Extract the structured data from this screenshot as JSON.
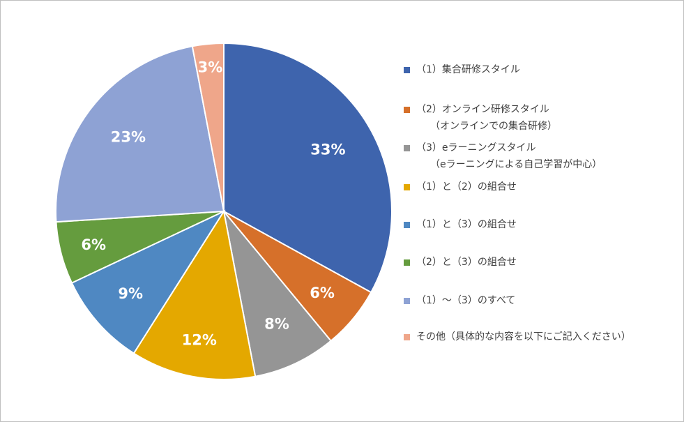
{
  "chart_data": {
    "type": "pie",
    "title": "",
    "legend_position": "right",
    "categories": [
      "（1）集合研修スタイル",
      "（2）オンライン研修スタイル（オンラインでの集合研修）",
      "（3）eラーニングスタイル（eラーニングによる自己学習が中心）",
      "（1）と（2）の組合せ",
      "（1）と（3）の組合せ",
      "（2）と（3）の組合せ",
      "（1）～（3）のすべて",
      "その他（具体的な内容を以下にご記入ください）"
    ],
    "values": [
      33,
      6,
      8,
      12,
      9,
      6,
      23,
      3
    ],
    "value_labels": [
      "33%",
      "6%",
      "8%",
      "12%",
      "9%",
      "6%",
      "23%",
      "3%"
    ],
    "colors": [
      "#3e64ad",
      "#d6702a",
      "#959595",
      "#e4a800",
      "#4f88c2",
      "#659c3e",
      "#8ea2d4",
      "#efa68a"
    ],
    "legend": [
      {
        "lines": [
          "（1）集合研修スタイル"
        ]
      },
      {
        "lines": [
          "（2）オンライン研修スタイル",
          "（オンラインでの集合研修）"
        ]
      },
      {
        "lines": [
          "（3）eラーニングスタイル",
          "（eラーニングによる自己学習が中心）"
        ]
      },
      {
        "lines": [
          "（1）と（2）の組合せ"
        ]
      },
      {
        "lines": [
          "（1）と（3）の組合せ"
        ]
      },
      {
        "lines": [
          "（2）と（3）の組合せ"
        ]
      },
      {
        "lines": [
          "（1）～（3）のすべて"
        ]
      },
      {
        "lines": [
          "その他（具体的な内容を以下にご記入ください）"
        ]
      }
    ]
  }
}
